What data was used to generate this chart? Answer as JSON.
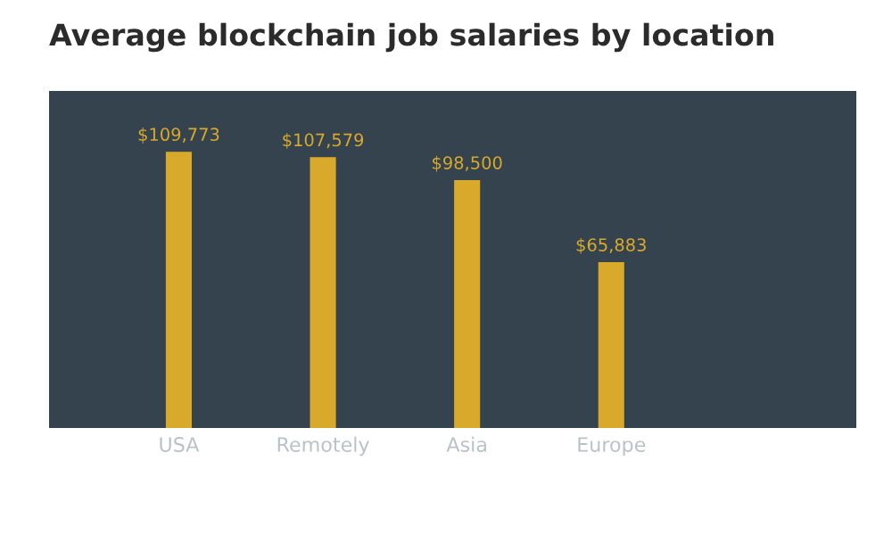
{
  "chart_data": {
    "type": "bar",
    "title": "Average blockchain job salaries by location",
    "categories": [
      "USA",
      "Remotely",
      "Asia",
      "Europe"
    ],
    "values": [
      109773,
      107579,
      98500,
      65883
    ],
    "value_labels": [
      "$109,773",
      "$107,579",
      "$98,500",
      "$65,883"
    ],
    "color": "#d9a92c",
    "grid": false,
    "legend": false
  }
}
